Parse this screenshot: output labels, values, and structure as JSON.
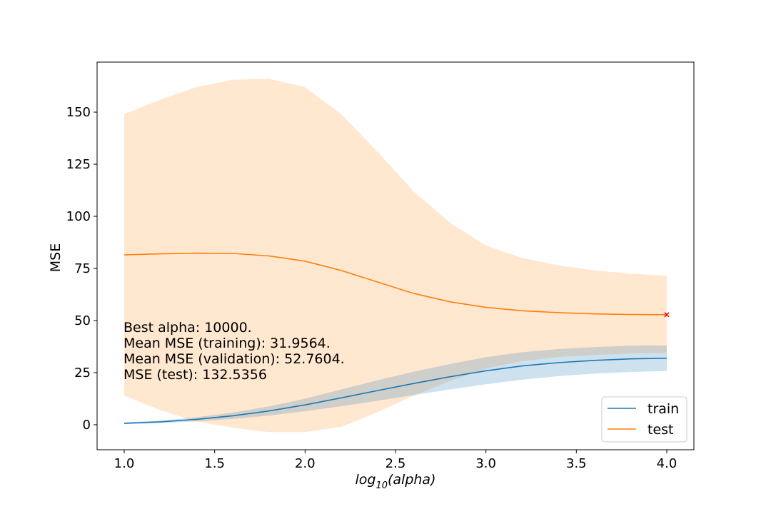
{
  "chart_data": {
    "type": "line",
    "xlabel_base": "log",
    "xlabel_sub": "10",
    "xlabel_arg": "(alpha)",
    "ylabel": "MSE",
    "xlim": [
      0.85,
      4.15
    ],
    "ylim": [
      -12,
      174
    ],
    "xticks": [
      1.0,
      1.5,
      2.0,
      2.5,
      3.0,
      3.5,
      4.0
    ],
    "xtick_labels": [
      "1.0",
      "1.5",
      "2.0",
      "2.5",
      "3.0",
      "3.5",
      "4.0"
    ],
    "yticks": [
      0,
      25,
      50,
      75,
      100,
      125,
      150
    ],
    "ytick_labels": [
      "0",
      "25",
      "50",
      "75",
      "100",
      "125",
      "150"
    ],
    "grid": false,
    "legend_position": "lower-right",
    "series": [
      {
        "name": "train",
        "color": "#1f77b4",
        "band_color": "#1f77b4",
        "x": [
          1.0,
          1.2,
          1.4,
          1.6,
          1.8,
          2.0,
          2.2,
          2.4,
          2.6,
          2.8,
          3.0,
          3.2,
          3.4,
          3.6,
          3.8,
          4.0
        ],
        "mean": [
          0.7,
          1.4,
          2.6,
          4.3,
          6.6,
          9.5,
          12.9,
          16.4,
          19.8,
          23.0,
          25.9,
          28.2,
          29.8,
          30.9,
          31.6,
          31.9
        ],
        "lower": [
          0.3,
          0.8,
          1.6,
          2.8,
          4.4,
          6.5,
          8.9,
          11.5,
          14.2,
          16.9,
          19.4,
          21.6,
          23.3,
          24.5,
          25.3,
          25.8
        ],
        "upper": [
          1.1,
          2.0,
          3.6,
          5.8,
          8.8,
          12.5,
          16.9,
          21.3,
          25.4,
          29.1,
          32.4,
          34.8,
          36.3,
          37.3,
          37.9,
          38.0
        ]
      },
      {
        "name": "test",
        "color": "#ff7f0e",
        "band_color": "#ffbb78",
        "x": [
          1.0,
          1.2,
          1.4,
          1.6,
          1.8,
          2.0,
          2.2,
          2.4,
          2.6,
          2.8,
          3.0,
          3.2,
          3.4,
          3.6,
          3.8,
          4.0
        ],
        "mean": [
          81.5,
          82.0,
          82.3,
          82.2,
          81.0,
          78.5,
          74.0,
          68.5,
          63.0,
          59.0,
          56.3,
          54.7,
          53.8,
          53.2,
          52.9,
          52.8
        ],
        "lower": [
          14.0,
          7.0,
          1.5,
          -1.5,
          -3.5,
          -3.5,
          -1.0,
          6.0,
          14.0,
          21.0,
          27.0,
          30.5,
          32.5,
          33.5,
          34.2,
          34.5
        ],
        "upper": [
          149.0,
          156.0,
          162.0,
          165.5,
          166.0,
          162.0,
          149.0,
          131.0,
          112.0,
          97.0,
          86.0,
          80.0,
          76.5,
          74.0,
          72.5,
          71.5
        ]
      }
    ],
    "best_point": {
      "x": 4.0,
      "y": 52.8,
      "color": "#ff0000",
      "marker": "x"
    },
    "annotations": [
      "Best alpha: 10000.",
      "Mean MSE (training): 31.9564.",
      "Mean MSE (validation): 52.7604.",
      "MSE (test): 132.5356"
    ]
  }
}
